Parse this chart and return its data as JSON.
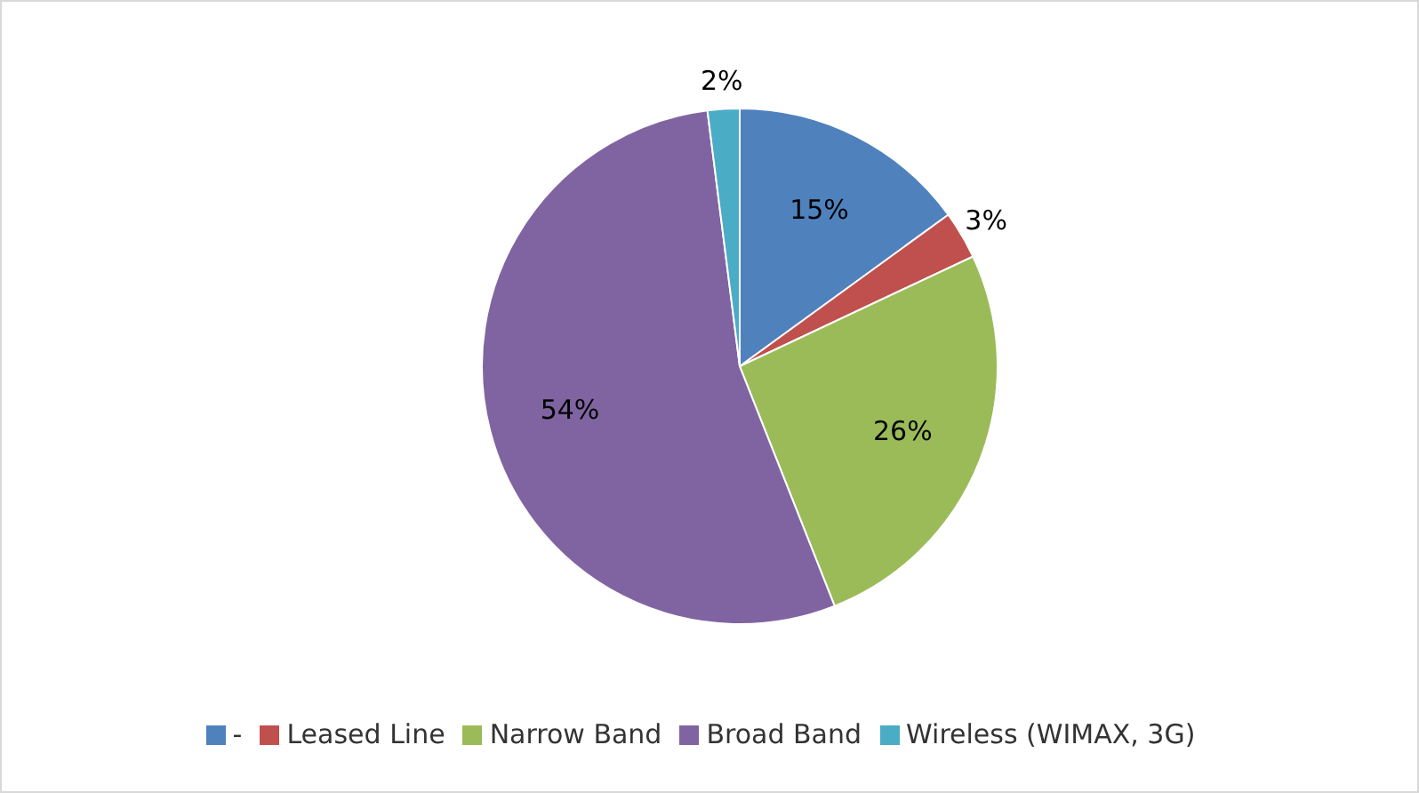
{
  "chart_data": {
    "type": "pie",
    "categories": [
      "-",
      "Leased Line",
      "Narrow Band",
      "Broad Band",
      "Wireless (WIMAX, 3G)"
    ],
    "values": [
      15,
      3,
      26,
      54,
      2
    ],
    "value_labels": [
      "15%",
      "3%",
      "26%",
      "54%",
      "2%"
    ],
    "colors": [
      "#4f81bd",
      "#c0504d",
      "#9bbb59",
      "#8064a2",
      "#4bacc6"
    ],
    "legend": "bottom"
  }
}
